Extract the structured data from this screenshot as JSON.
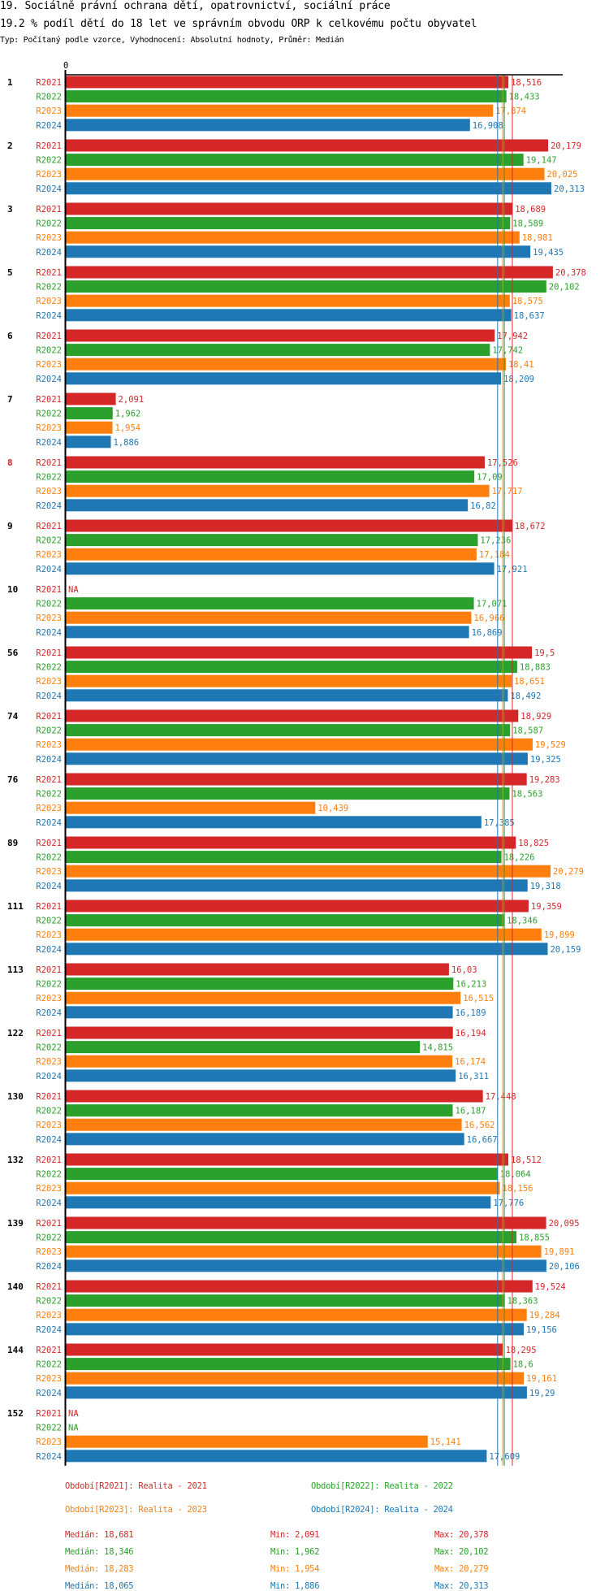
{
  "header": {
    "title": "19. Sociálně právní ochrana dětí, opatrovnictví, sociální práce",
    "subtitle": "19.2 % podíl dětí do 18 let ve správním obvodu ORP k celkovému počtu obyvatel",
    "meta": "Typ: Počítaný podle vzorce, Vyhodnocení: Absolutní hodnoty, Průměr: Medián"
  },
  "chart_data": {
    "type": "bar",
    "orientation": "horizontal",
    "title": "19.2 % podíl dětí do 18 let ve správním obvodu ORP k celkovému počtu obyvatel",
    "axis_zero_label": "0",
    "xlim": [
      0,
      20.378
    ],
    "series": [
      {
        "name": "R2021",
        "color": "#d62728",
        "legend": "Období[R2021]: Realita - 2021",
        "median": 18.681,
        "median_label": "Medián: 18,681",
        "min_label": "Min: 2,091",
        "max_label": "Max: 20,378",
        "line_style": "solid"
      },
      {
        "name": "R2022",
        "color": "#2ca02c",
        "legend": "Období[R2022]: Realita - 2022",
        "median": 18.346,
        "median_label": "Medián: 18,346",
        "min_label": "Min: 1,962",
        "max_label": "Max: 20,102",
        "line_style": "solid"
      },
      {
        "name": "R2023",
        "color": "#ff7f0e",
        "legend": "Období[R2023]: Realita - 2023",
        "median": 18.283,
        "median_label": "Medián: 18,283",
        "min_label": "Min: 1,954",
        "max_label": "Max: 20,279",
        "line_style": "solid"
      },
      {
        "name": "R2024",
        "color": "#1f77b4",
        "legend": "Období[R2024]: Realita - 2024",
        "median": 18.065,
        "median_label": "Medián: 18,065",
        "min_label": "Min: 1,886",
        "max_label": "Max: 20,313",
        "line_style": "solid"
      }
    ],
    "groups": [
      {
        "label": "1",
        "highlight": false,
        "values": [
          18.516,
          18.433,
          17.874,
          16.908
        ]
      },
      {
        "label": "2",
        "highlight": false,
        "values": [
          20.179,
          19.147,
          20.025,
          20.313
        ]
      },
      {
        "label": "3",
        "highlight": false,
        "values": [
          18.689,
          18.589,
          18.981,
          19.435
        ]
      },
      {
        "label": "5",
        "highlight": false,
        "values": [
          20.378,
          20.102,
          18.575,
          18.637
        ]
      },
      {
        "label": "6",
        "highlight": false,
        "values": [
          17.942,
          17.742,
          18.41,
          18.209
        ]
      },
      {
        "label": "7",
        "highlight": false,
        "values": [
          2.091,
          1.962,
          1.954,
          1.886
        ]
      },
      {
        "label": "8",
        "highlight": true,
        "values": [
          17.526,
          17.09,
          17.717,
          16.82
        ]
      },
      {
        "label": "9",
        "highlight": false,
        "values": [
          18.672,
          17.236,
          17.184,
          17.921
        ]
      },
      {
        "label": "10",
        "highlight": false,
        "values": [
          null,
          17.071,
          16.966,
          16.869
        ]
      },
      {
        "label": "56",
        "highlight": false,
        "values": [
          19.5,
          18.883,
          18.651,
          18.492
        ]
      },
      {
        "label": "74",
        "highlight": false,
        "values": [
          18.929,
          18.587,
          19.529,
          19.325
        ]
      },
      {
        "label": "76",
        "highlight": false,
        "values": [
          19.283,
          18.563,
          10.439,
          17.385
        ]
      },
      {
        "label": "89",
        "highlight": false,
        "values": [
          18.825,
          18.226,
          20.279,
          19.318
        ]
      },
      {
        "label": "111",
        "highlight": false,
        "values": [
          19.359,
          18.346,
          19.899,
          20.159
        ]
      },
      {
        "label": "113",
        "highlight": false,
        "values": [
          16.03,
          16.213,
          16.515,
          16.189
        ]
      },
      {
        "label": "122",
        "highlight": false,
        "values": [
          16.194,
          14.815,
          16.174,
          16.311
        ]
      },
      {
        "label": "130",
        "highlight": false,
        "values": [
          17.448,
          16.187,
          16.562,
          16.667
        ]
      },
      {
        "label": "132",
        "highlight": false,
        "values": [
          18.512,
          18.064,
          18.156,
          17.776
        ]
      },
      {
        "label": "139",
        "highlight": false,
        "values": [
          20.095,
          18.855,
          19.891,
          20.106
        ]
      },
      {
        "label": "140",
        "highlight": false,
        "values": [
          19.524,
          18.363,
          19.284,
          19.156
        ]
      },
      {
        "label": "144",
        "highlight": false,
        "values": [
          18.295,
          18.6,
          19.161,
          19.29
        ]
      },
      {
        "label": "152",
        "highlight": false,
        "values": [
          null,
          null,
          15.141,
          17.609
        ]
      }
    ],
    "na_label": "NA",
    "highlight_color": "#d62728",
    "decimal_separator": ","
  }
}
